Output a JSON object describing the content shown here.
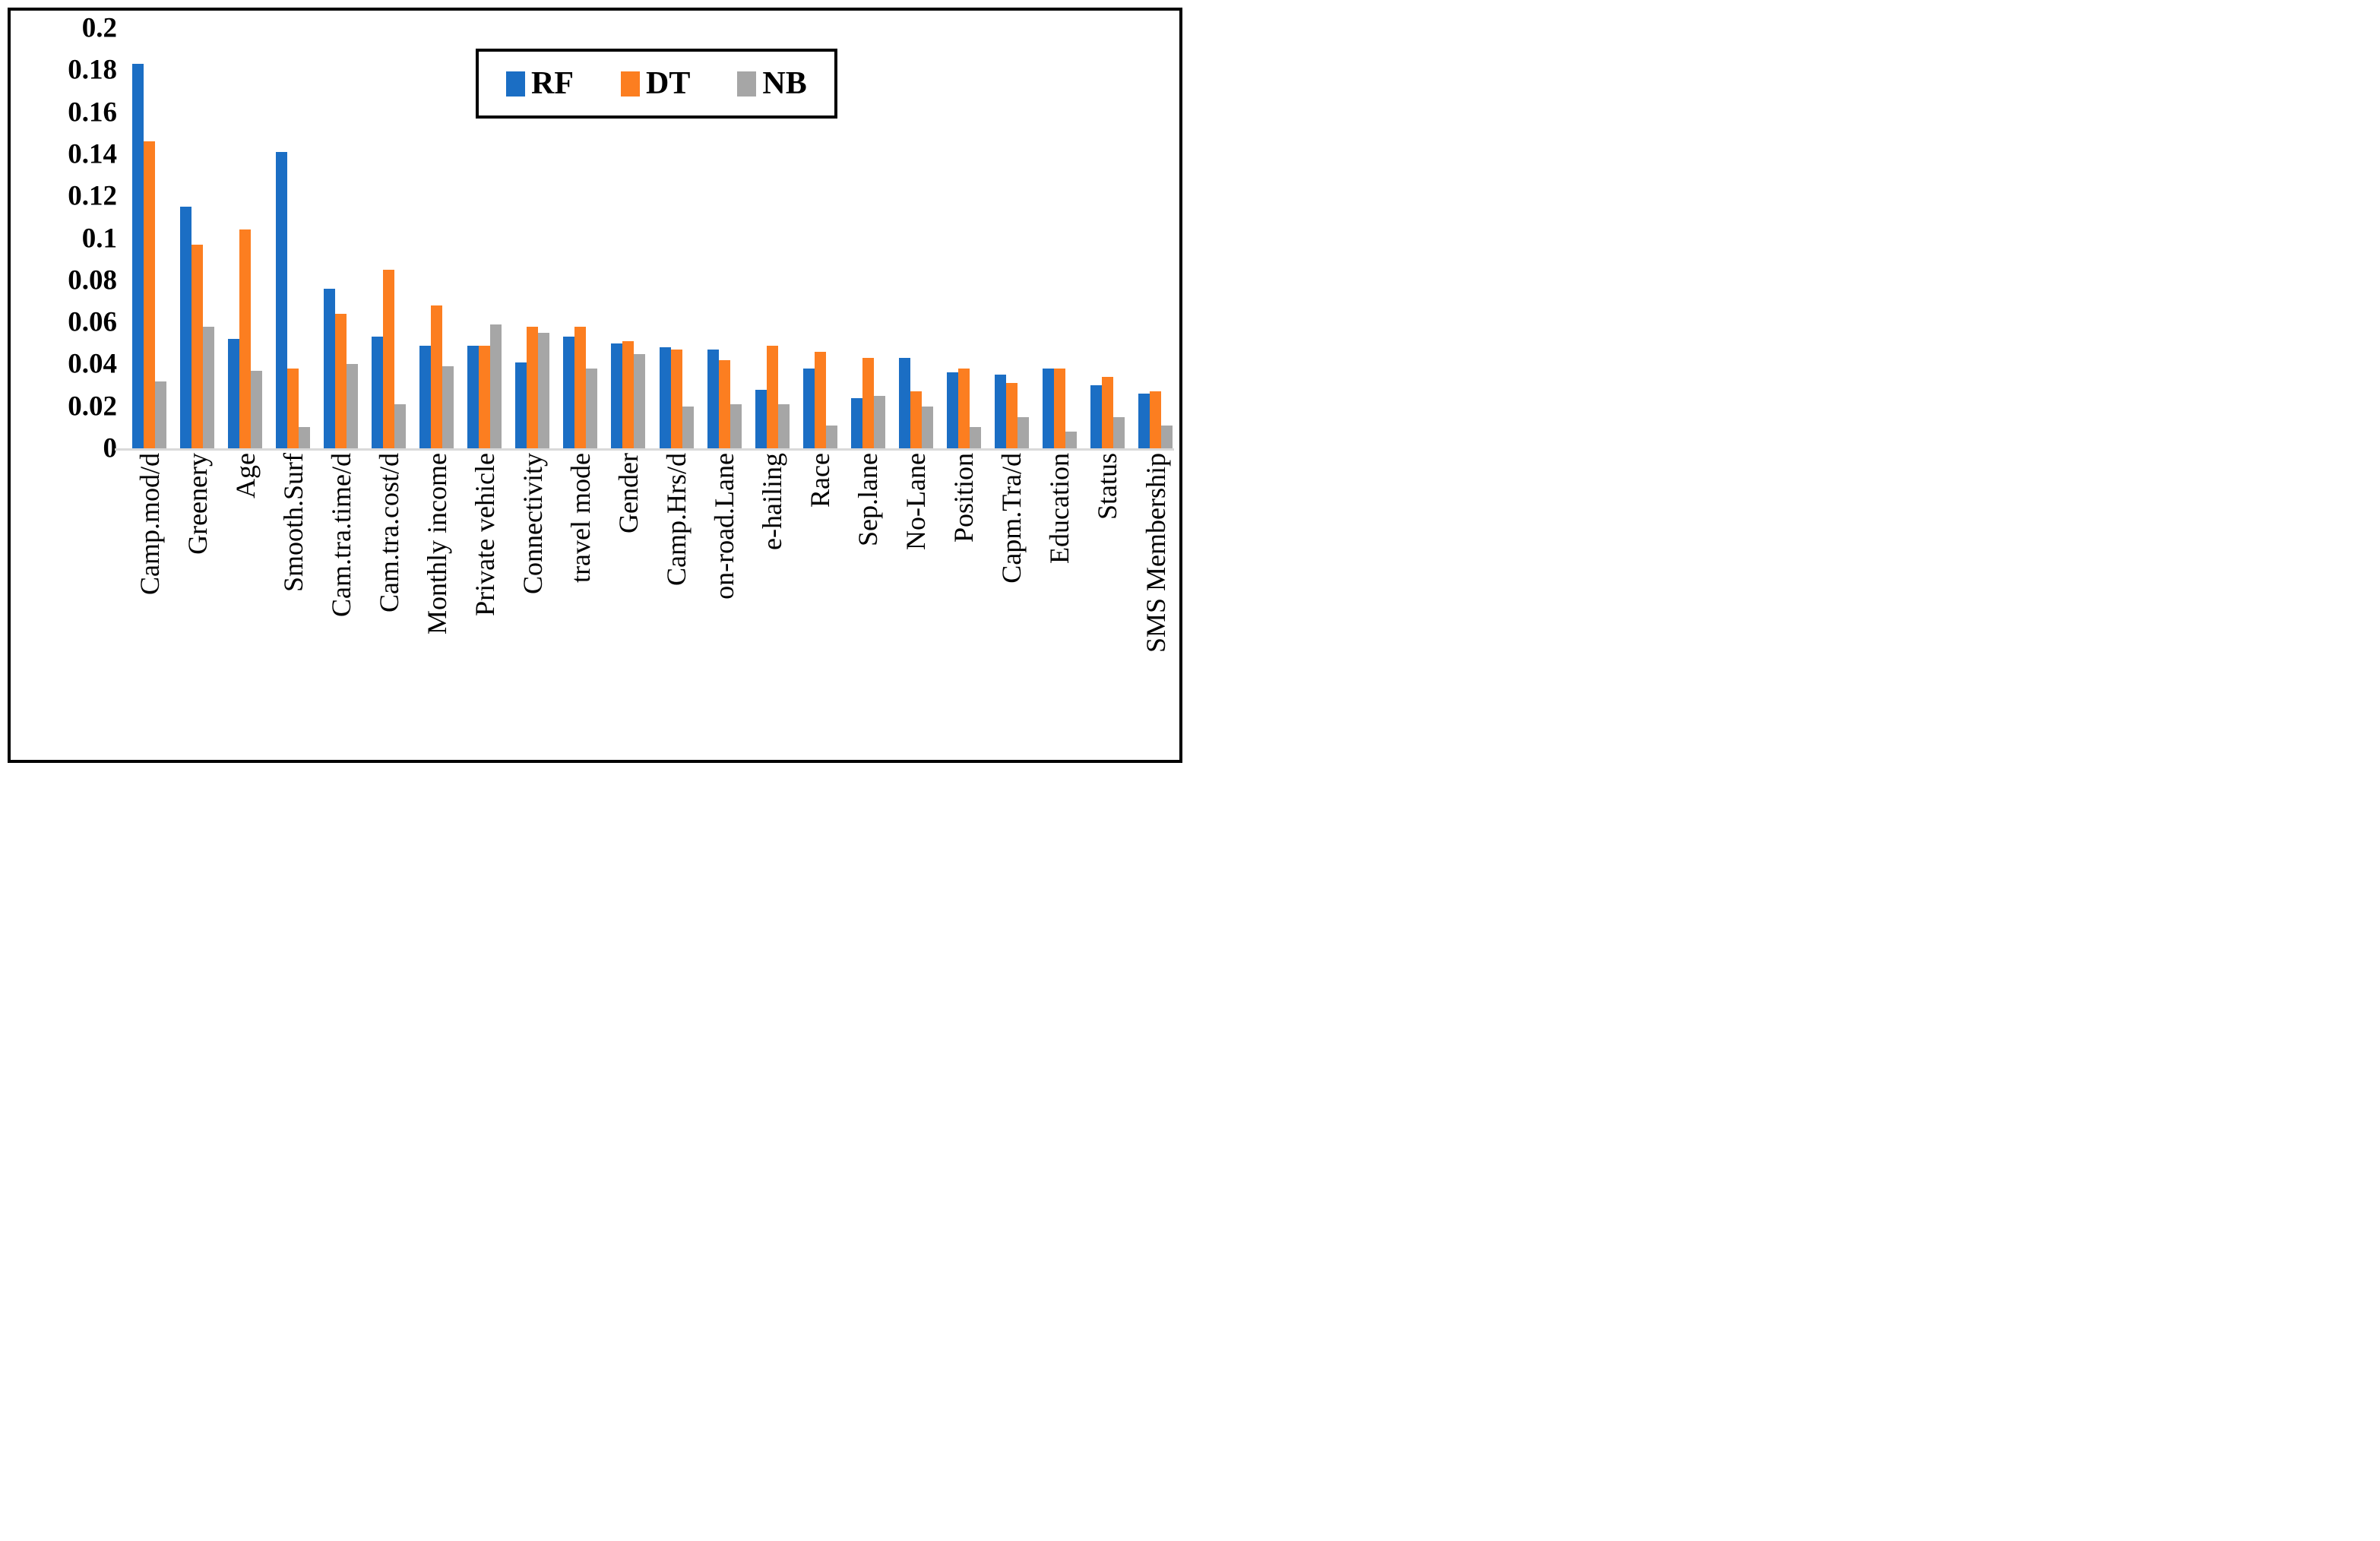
{
  "figure": {
    "background": "#ffffff",
    "frame_border_color": "#000000",
    "axis_line_color": "#d9d9d9",
    "text_color": "#000000"
  },
  "legend": {
    "position": "top-center",
    "border_color": "#000000"
  },
  "chart_data": {
    "type": "bar",
    "title": "",
    "xlabel": "",
    "ylabel": "",
    "ylim": [
      0,
      0.2
    ],
    "grid": false,
    "legend_position": "top-center",
    "ytick_labels": [
      "0.2",
      "0.18",
      "0.16",
      "0.14",
      "0.12",
      "0.1",
      "0.08",
      "0.06",
      "0.04",
      "0.02",
      "0"
    ],
    "ytick_values": [
      0.2,
      0.18,
      0.16,
      0.14,
      0.12,
      0.1,
      0.08,
      0.06,
      0.04,
      0.02,
      0
    ],
    "categories": [
      "Camp.mod/d",
      "Greenery",
      "Age",
      "Smooth.Surf",
      "Cam.tra.time/d",
      "Cam.tra.cost/d",
      "Monthly income",
      "Private vehicle",
      "Connectivity",
      "travel mode",
      "Gender",
      "Camp.Hrs/d",
      "on-road.Lane",
      "e-hailing",
      "Race",
      "Sep.lane",
      "No-Lane",
      "Position",
      "Capm.Tra/d",
      "Education",
      "Status",
      "SMS Membership"
    ],
    "series": [
      {
        "name": "RF",
        "color": "#1b6ec4",
        "values": [
          0.183,
          0.115,
          0.052,
          0.141,
          0.076,
          0.053,
          0.049,
          0.049,
          0.041,
          0.053,
          0.05,
          0.048,
          0.047,
          0.028,
          0.038,
          0.024,
          0.043,
          0.036,
          0.035,
          0.038,
          0.03,
          0.026
        ]
      },
      {
        "name": "DT",
        "color": "#fc7e20",
        "values": [
          0.146,
          0.097,
          0.104,
          0.038,
          0.064,
          0.085,
          0.068,
          0.049,
          0.058,
          0.058,
          0.051,
          0.047,
          0.042,
          0.049,
          0.046,
          0.043,
          0.027,
          0.038,
          0.031,
          0.038,
          0.034,
          0.027
        ]
      },
      {
        "name": "NB",
        "color": "#a6a6a6",
        "values": [
          0.032,
          0.058,
          0.037,
          0.01,
          0.04,
          0.021,
          0.039,
          0.059,
          0.055,
          0.038,
          0.045,
          0.02,
          0.021,
          0.021,
          0.011,
          0.025,
          0.02,
          0.01,
          0.015,
          0.008,
          0.015,
          0.011
        ]
      }
    ]
  }
}
